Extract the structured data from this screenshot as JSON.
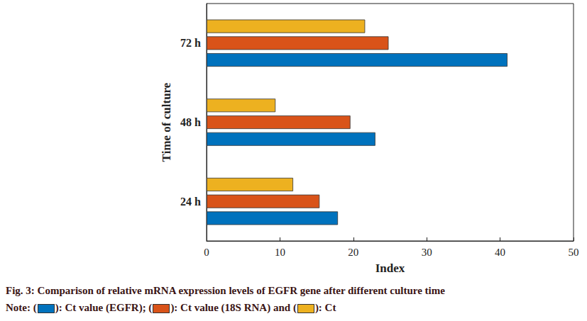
{
  "chart_data": {
    "type": "bar",
    "orientation": "horizontal",
    "categories": [
      "24 h",
      "48 h",
      "72 h"
    ],
    "series": [
      {
        "name": "Ct value (EGFR)",
        "color": "#0072bd",
        "values": [
          17.9,
          23.0,
          41.0
        ]
      },
      {
        "name": "Ct value (18S RNA)",
        "color": "#d95319",
        "values": [
          15.4,
          19.6,
          24.8
        ]
      },
      {
        "name": "Ct",
        "color": "#edb120",
        "values": [
          11.8,
          9.4,
          21.6
        ]
      }
    ],
    "xlabel": "Index",
    "ylabel": "Time of culture",
    "xlim": [
      0,
      50
    ],
    "xticks": [
      0,
      10,
      20,
      30,
      40,
      50
    ],
    "grid": false,
    "caption": "Fig. 3: Comparison of relative mRNA expression levels of EGFR gene after different culture time",
    "note": [
      "Note: (",
      "): Ct value (EGFR); (",
      "): Ct value (18S RNA) and (",
      "): Ct"
    ]
  }
}
